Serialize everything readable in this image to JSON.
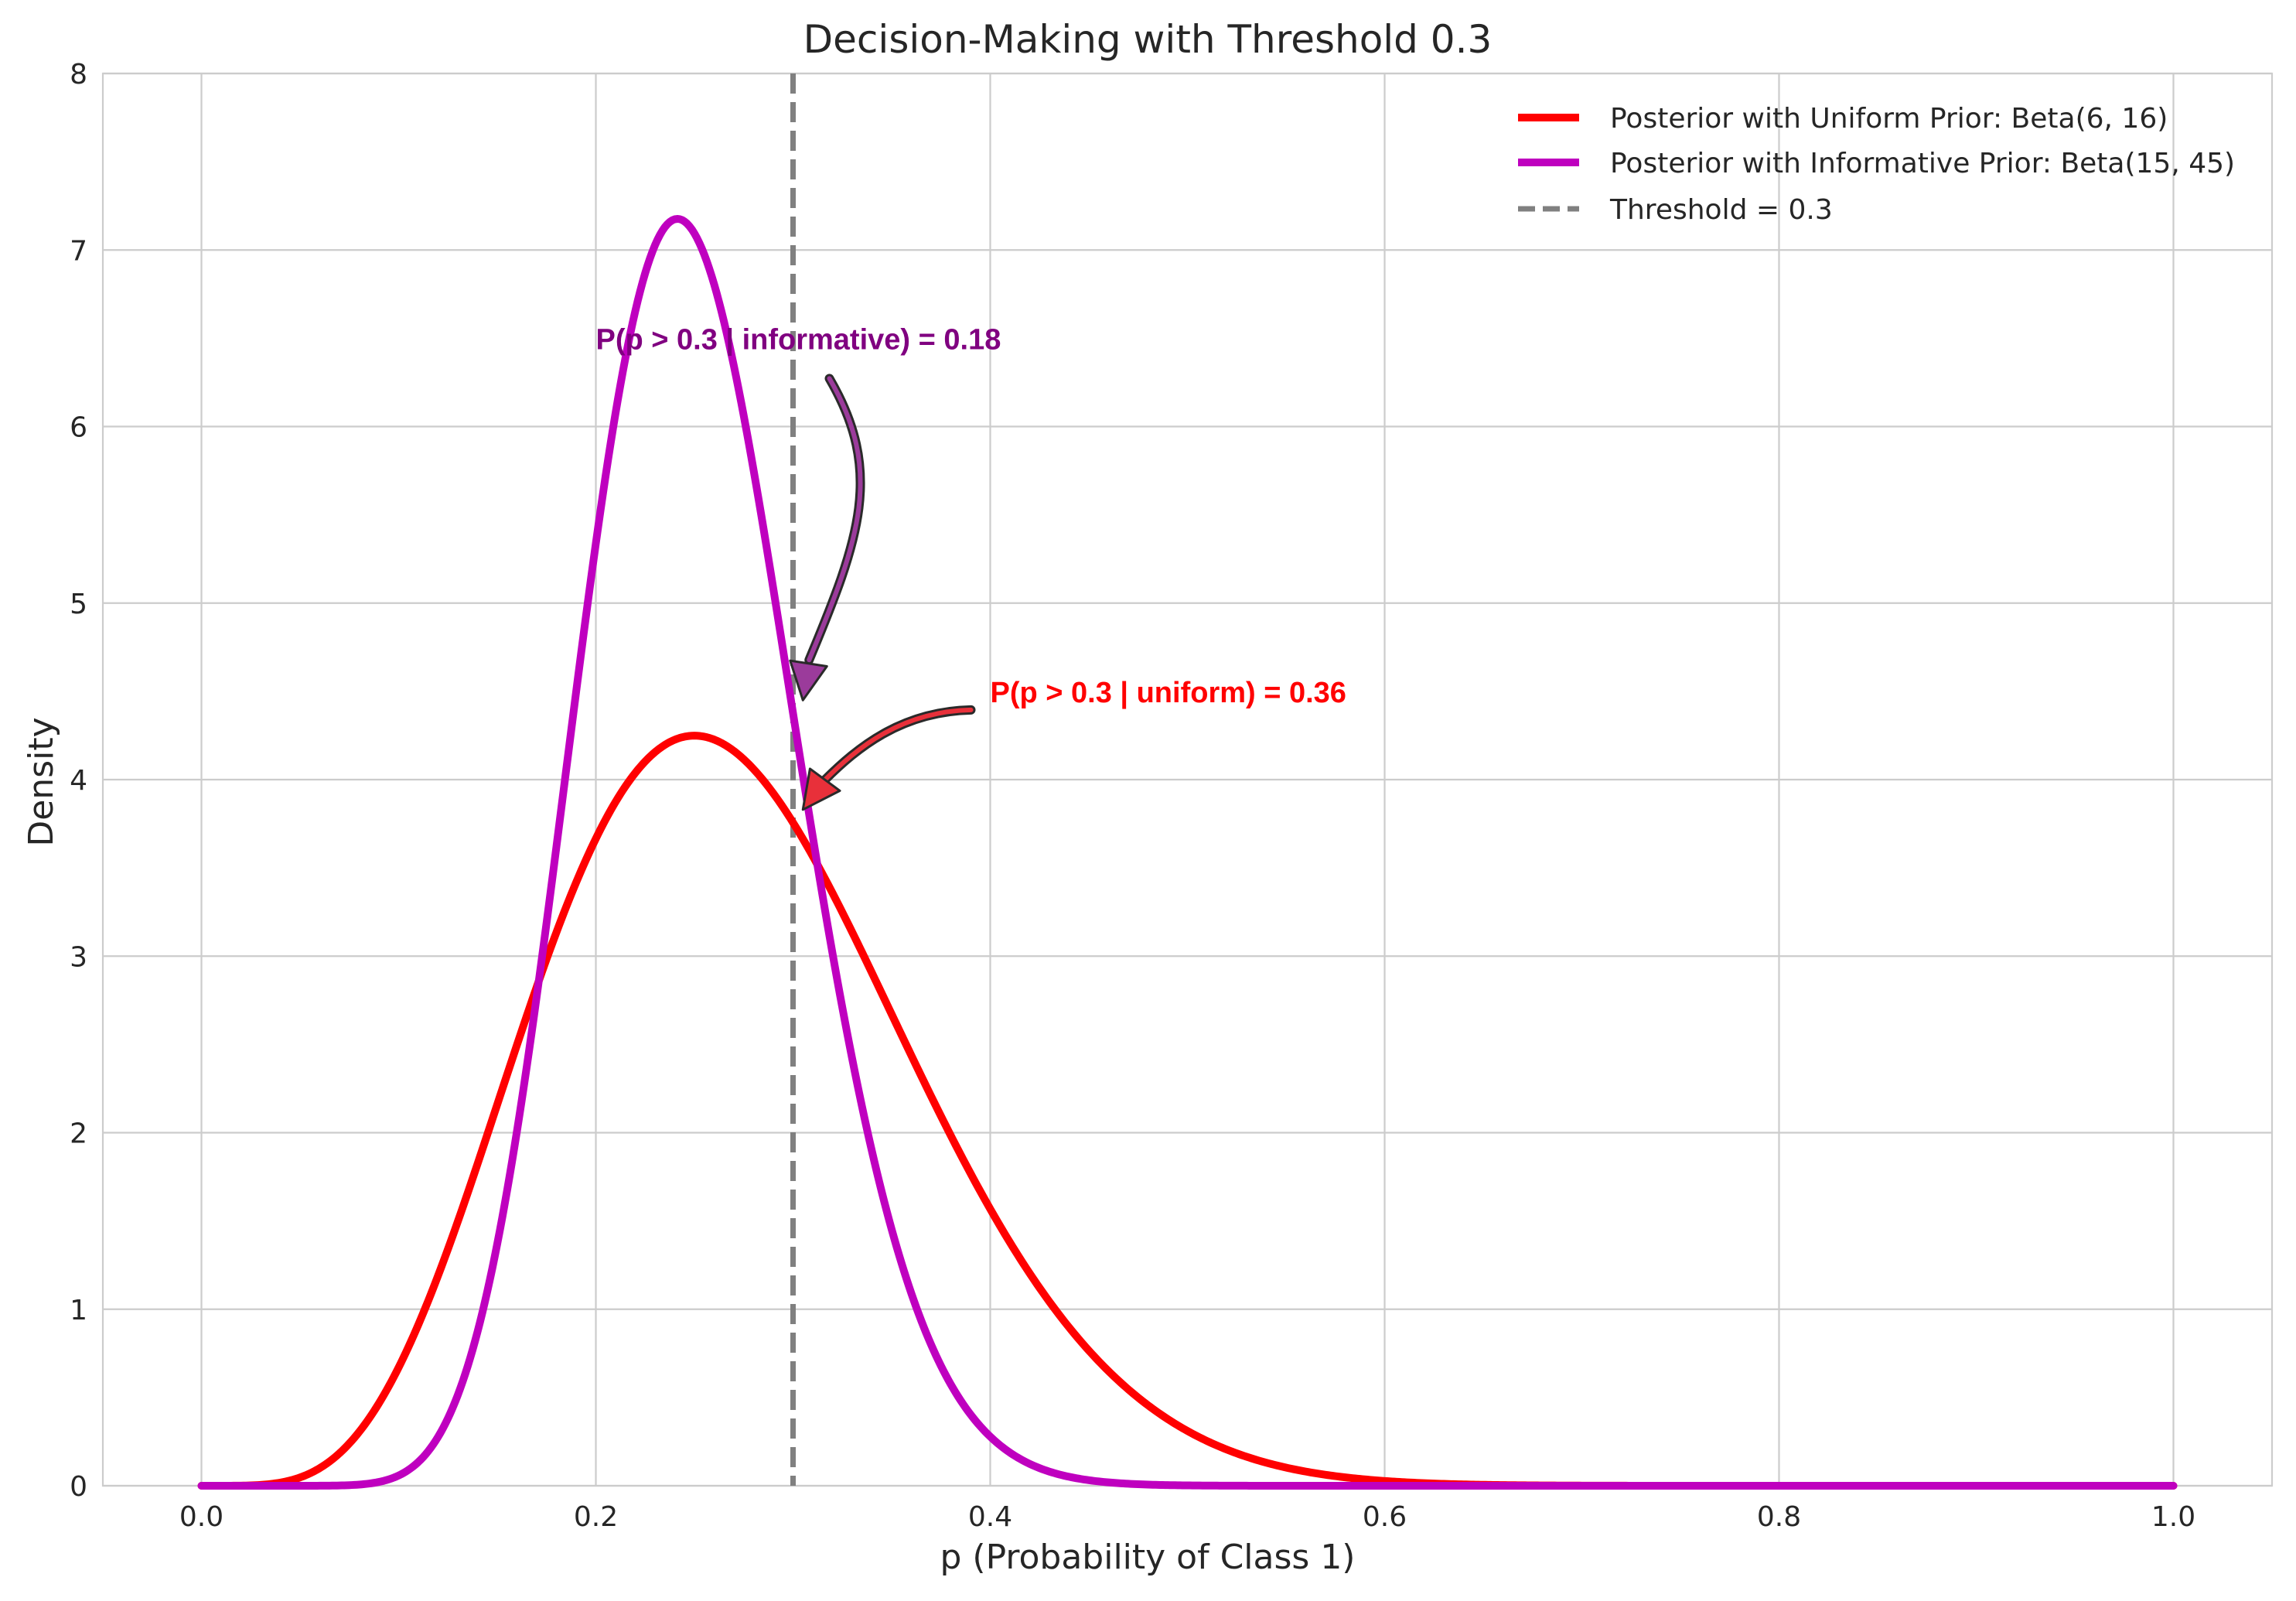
{
  "chart_data": {
    "type": "line",
    "title": "Decision-Making with Threshold 0.3",
    "xlabel": "p (Probability of Class 1)",
    "ylabel": "Density",
    "xlim": [
      -0.05,
      1.05
    ],
    "ylim": [
      0,
      8
    ],
    "x_ticks": [
      "0.0",
      "0.2",
      "0.4",
      "0.6",
      "0.8",
      "1.0"
    ],
    "y_ticks": [
      "0",
      "1",
      "2",
      "3",
      "4",
      "5",
      "6",
      "7",
      "8"
    ],
    "grid": true,
    "legend_position": "top-right",
    "series": [
      {
        "name": "Posterior with Uniform Prior: Beta(6, 16)",
        "distribution": "beta",
        "alpha": 6,
        "beta": 16,
        "color": "#ff0000",
        "x": [
          0,
          0.05,
          0.1,
          0.15,
          0.2,
          0.25,
          0.3,
          0.35,
          0.4,
          0.45,
          0.5,
          0.55,
          0.6,
          0.7,
          0.8,
          0.9,
          1.0
        ],
        "y": [
          0,
          0.13,
          1.17,
          2.81,
          3.95,
          4.25,
          3.67,
          2.68,
          1.61,
          0.83,
          0.37,
          0.14,
          0.05,
          0.0,
          0.0,
          0.0,
          0.0
        ]
      },
      {
        "name": "Posterior with Informative Prior: Beta(15, 45)",
        "distribution": "beta",
        "alpha": 15,
        "beta": 45,
        "color": "#bf00bf",
        "x": [
          0,
          0.05,
          0.1,
          0.15,
          0.2,
          0.25,
          0.3,
          0.35,
          0.4,
          0.45,
          0.5,
          0.6,
          0.7,
          0.8,
          0.9,
          1.0
        ],
        "y": [
          0,
          0.0,
          0.12,
          1.74,
          5.25,
          7.09,
          4.59,
          1.66,
          0.36,
          0.05,
          0.0,
          0.0,
          0.0,
          0.0,
          0.0,
          0.0
        ]
      }
    ],
    "threshold": {
      "label": "Threshold = 0.3",
      "value": 0.3,
      "color": "#808080",
      "style": "dashed"
    },
    "annotations": [
      {
        "text": "P(p > 0.3 | informative) = 0.18",
        "color": "#800080",
        "text_x": 0.2,
        "text_y": 6.5,
        "arrow_tip_x": 0.305,
        "arrow_tip_y": 4.45,
        "arrow_fill": "#9b3b9b"
      },
      {
        "text": "P(p > 0.3 | uniform) = 0.36",
        "color": "#ff0000",
        "text_x": 0.4,
        "text_y": 4.5,
        "arrow_tip_x": 0.305,
        "arrow_tip_y": 3.83,
        "arrow_fill": "#e8303a"
      }
    ]
  }
}
